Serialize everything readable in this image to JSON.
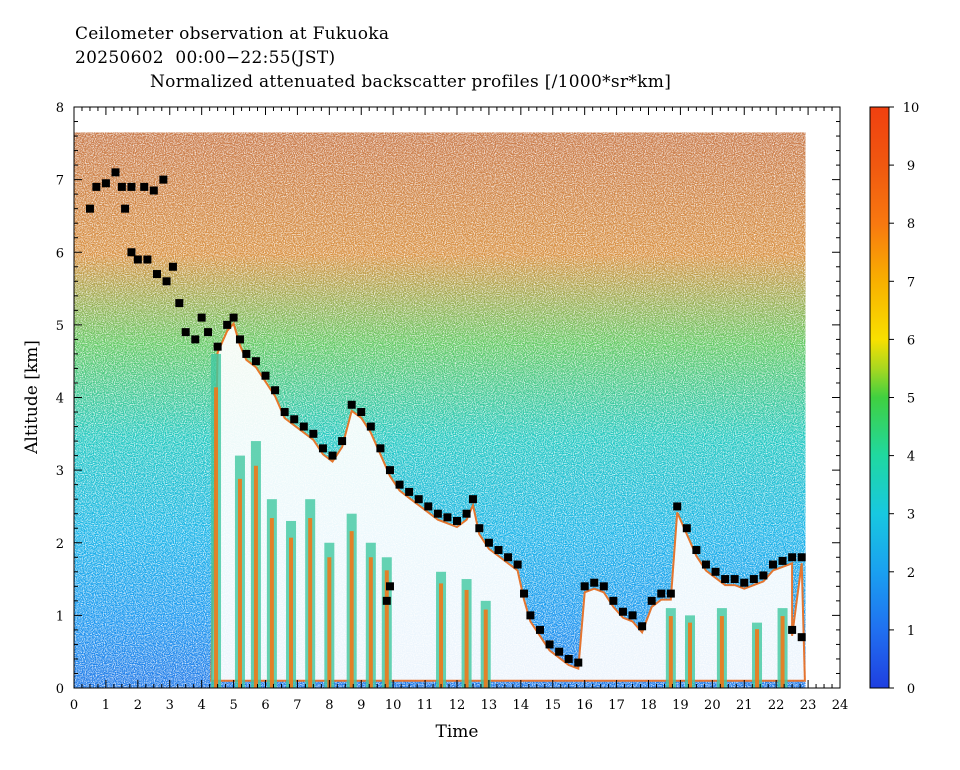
{
  "header": {
    "line1": "Ceilometer observation at Fukuoka",
    "line2": "20250602  00:00−22:55(JST)",
    "line3": "Normalized attenuated backscatter profiles [/1000*sr*km]"
  },
  "chart_data": {
    "type": "heatmap",
    "xlabel": "Time",
    "ylabel": "Altitude [km]",
    "xlim": [
      0,
      24
    ],
    "ylim": [
      0,
      8
    ],
    "x_ticks": [
      "0",
      "1",
      "2",
      "3",
      "4",
      "5",
      "6",
      "7",
      "8",
      "9",
      "10",
      "11",
      "12",
      "13",
      "14",
      "15",
      "16",
      "17",
      "18",
      "19",
      "20",
      "21",
      "22",
      "23",
      "24"
    ],
    "y_ticks": [
      "0",
      "1",
      "2",
      "3",
      "4",
      "5",
      "6",
      "7",
      "8"
    ],
    "data_x_range": [
      0,
      22.92
    ],
    "data_y_range": [
      0,
      7.65
    ],
    "colorbar": {
      "range": [
        0,
        10
      ],
      "ticks": [
        "0",
        "1",
        "2",
        "3",
        "4",
        "5",
        "6",
        "7",
        "8",
        "9",
        "10"
      ],
      "colors": [
        "#1f3fe0",
        "#2070f0",
        "#1aa0f0",
        "#18c8e0",
        "#20d8a0",
        "#40d040",
        "#a8d820",
        "#f8e000",
        "#f8b000",
        "#f87810",
        "#f04010"
      ]
    },
    "cloud_base_series": {
      "name": "",
      "points": [
        [
          0.5,
          6.6
        ],
        [
          0.7,
          6.9
        ],
        [
          1.0,
          6.95
        ],
        [
          1.3,
          7.1
        ],
        [
          1.5,
          6.9
        ],
        [
          1.6,
          6.6
        ],
        [
          1.8,
          6.9
        ],
        [
          2.2,
          6.9
        ],
        [
          2.5,
          6.85
        ],
        [
          2.8,
          7.0
        ],
        [
          1.8,
          6.0
        ],
        [
          2.0,
          5.9
        ],
        [
          2.3,
          5.9
        ],
        [
          2.6,
          5.7
        ],
        [
          2.9,
          5.6
        ],
        [
          3.1,
          5.8
        ],
        [
          3.3,
          5.3
        ],
        [
          3.5,
          4.9
        ],
        [
          3.8,
          4.8
        ],
        [
          4.0,
          5.1
        ],
        [
          4.2,
          4.9
        ],
        [
          4.5,
          4.7
        ],
        [
          4.8,
          5.0
        ],
        [
          5.0,
          5.1
        ],
        [
          5.2,
          4.8
        ],
        [
          5.4,
          4.6
        ],
        [
          5.7,
          4.5
        ],
        [
          6.0,
          4.3
        ],
        [
          6.3,
          4.1
        ],
        [
          6.6,
          3.8
        ],
        [
          6.9,
          3.7
        ],
        [
          7.2,
          3.6
        ],
        [
          7.5,
          3.5
        ],
        [
          7.8,
          3.3
        ],
        [
          8.1,
          3.2
        ],
        [
          8.4,
          3.4
        ],
        [
          8.7,
          3.9
        ],
        [
          9.0,
          3.8
        ],
        [
          9.3,
          3.6
        ],
        [
          9.6,
          3.3
        ],
        [
          9.9,
          3.0
        ],
        [
          10.2,
          2.8
        ],
        [
          10.5,
          2.7
        ],
        [
          10.8,
          2.6
        ],
        [
          11.1,
          2.5
        ],
        [
          11.4,
          2.4
        ],
        [
          11.7,
          2.35
        ],
        [
          12.0,
          2.3
        ],
        [
          12.3,
          2.4
        ],
        [
          12.5,
          2.6
        ],
        [
          12.7,
          2.2
        ],
        [
          13.0,
          2.0
        ],
        [
          13.3,
          1.9
        ],
        [
          13.6,
          1.8
        ],
        [
          13.9,
          1.7
        ],
        [
          14.1,
          1.3
        ],
        [
          14.3,
          1.0
        ],
        [
          14.6,
          0.8
        ],
        [
          14.9,
          0.6
        ],
        [
          15.2,
          0.5
        ],
        [
          15.5,
          0.4
        ],
        [
          15.8,
          0.35
        ],
        [
          16.0,
          1.4
        ],
        [
          16.3,
          1.45
        ],
        [
          16.6,
          1.4
        ],
        [
          16.9,
          1.2
        ],
        [
          17.2,
          1.05
        ],
        [
          17.5,
          1.0
        ],
        [
          17.8,
          0.85
        ],
        [
          18.1,
          1.2
        ],
        [
          18.4,
          1.3
        ],
        [
          18.7,
          1.3
        ],
        [
          18.9,
          2.5
        ],
        [
          19.2,
          2.2
        ],
        [
          19.5,
          1.9
        ],
        [
          19.8,
          1.7
        ],
        [
          20.1,
          1.6
        ],
        [
          20.4,
          1.5
        ],
        [
          20.7,
          1.5
        ],
        [
          21.0,
          1.45
        ],
        [
          21.3,
          1.5
        ],
        [
          21.6,
          1.55
        ],
        [
          21.9,
          1.7
        ],
        [
          22.2,
          1.75
        ],
        [
          22.5,
          1.8
        ],
        [
          22.8,
          1.8
        ],
        [
          22.5,
          0.8
        ],
        [
          22.8,
          0.7
        ],
        [
          9.8,
          1.2
        ],
        [
          9.9,
          1.4
        ]
      ]
    }
  }
}
